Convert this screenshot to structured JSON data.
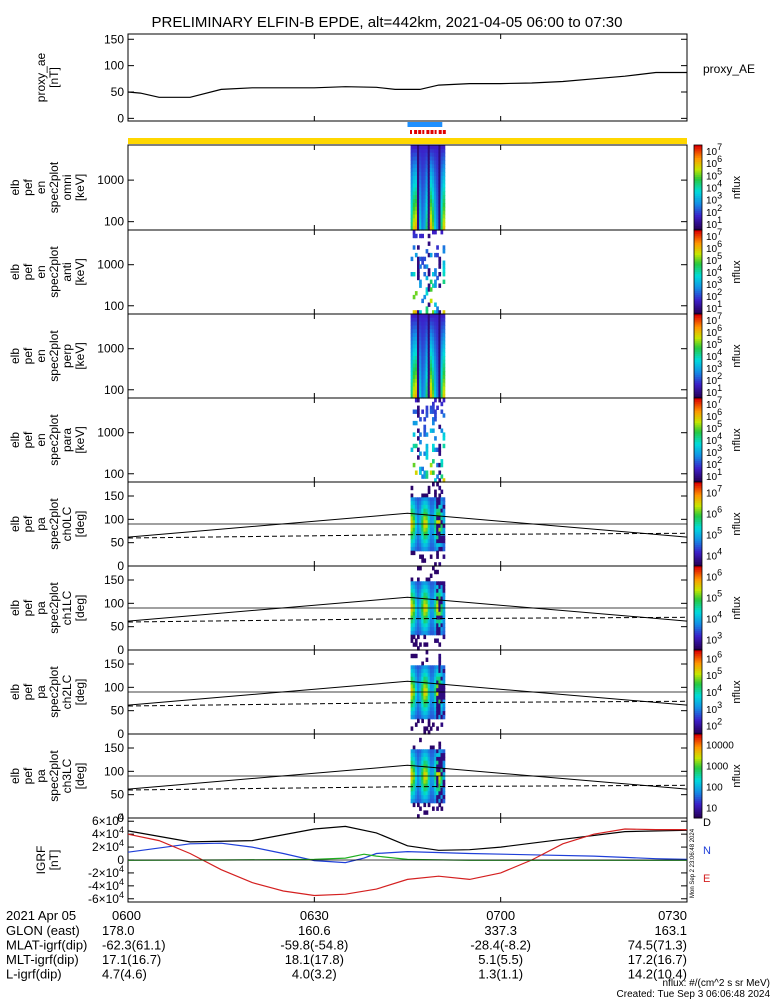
{
  "title": "PRELIMINARY ELFIN-B EPDE, alt=442km, 2021-04-05 06:00 to 07:30",
  "time_axis": {
    "ticks": [
      "0600",
      "0630",
      "0700",
      "0730"
    ],
    "tick_minutes": [
      0,
      30,
      60,
      90
    ],
    "range_minutes": [
      0,
      90
    ],
    "row_label_date": "2021 Apr 05",
    "rows": [
      {
        "label": "GLON (east)",
        "values": [
          "178.0",
          "160.6",
          "337.3",
          "163.1"
        ]
      },
      {
        "label": "MLAT-igrf(dip)",
        "values": [
          "-62.3(61.1)",
          "-59.8(-54.8)",
          "-28.4(-8.2)",
          "74.5(71.3)"
        ]
      },
      {
        "label": "MLT-igrf(dip)",
        "values": [
          "17.1(16.7)",
          "18.1(17.8)",
          "5.1(5.5)",
          "17.2(16.7)"
        ]
      },
      {
        "label": "L-igrf(dip)",
        "values": [
          "4.7(4.6)",
          "4.0(3.2)",
          "1.3(1.1)",
          "14.2(10.4)"
        ]
      }
    ]
  },
  "footer": {
    "units": "nflux: #/(cm^2 s sr MeV)",
    "created": "Created: Tue Sep  3 06:06:48 2024",
    "stamp": "Mon Sep  2 23:06:48 2024"
  },
  "chart_data": [
    {
      "type": "line",
      "panel": "proxy_ae",
      "ylabel": [
        "proxy_ae",
        "[nT]"
      ],
      "legend": "proxy_AE",
      "yticks": [
        "0",
        "50",
        "100",
        "150"
      ],
      "ylim": [
        -5,
        160
      ],
      "x": [
        0,
        2,
        5,
        10,
        15,
        20,
        25,
        30,
        35,
        40,
        43,
        47,
        50,
        55,
        60,
        65,
        70,
        75,
        80,
        85,
        90
      ],
      "y": [
        50,
        48,
        40,
        40,
        55,
        58,
        58,
        58,
        60,
        59,
        55,
        55,
        63,
        66,
        66,
        67,
        70,
        75,
        80,
        87,
        87
      ]
    },
    {
      "type": "heatmap",
      "panel": "en_spec2plot_omni",
      "ylabel": [
        "elb",
        "pef",
        "en",
        "spec2plot",
        "omni",
        "[keV]"
      ],
      "yticks": [
        "100",
        "1000"
      ],
      "yscale": "log",
      "ylim": [
        63,
        7000
      ],
      "colorbar": {
        "label": "nflux",
        "ticks": [
          "10^1",
          "10^2",
          "10^3",
          "10^4",
          "10^5",
          "10^6",
          "10^7"
        ]
      },
      "data_window_minutes": [
        45.5,
        51.0
      ]
    },
    {
      "type": "heatmap",
      "panel": "en_spec2plot_anti",
      "ylabel": [
        "elb",
        "pef",
        "en",
        "spec2plot",
        "anti",
        "[keV]"
      ],
      "yticks": [
        "100",
        "1000"
      ],
      "yscale": "log",
      "ylim": [
        63,
        7000
      ],
      "colorbar": {
        "label": "nflux",
        "ticks": [
          "10^1",
          "10^2",
          "10^3",
          "10^4",
          "10^5",
          "10^6",
          "10^7"
        ]
      },
      "data_window_minutes": [
        45.5,
        51.0
      ]
    },
    {
      "type": "heatmap",
      "panel": "en_spec2plot_perp",
      "ylabel": [
        "elb",
        "pef",
        "en",
        "spec2plot",
        "perp",
        "[keV]"
      ],
      "yticks": [
        "100",
        "1000"
      ],
      "yscale": "log",
      "ylim": [
        63,
        7000
      ],
      "colorbar": {
        "label": "nflux",
        "ticks": [
          "10^1",
          "10^2",
          "10^3",
          "10^4",
          "10^5",
          "10^6",
          "10^7"
        ]
      },
      "data_window_minutes": [
        45.5,
        51.0
      ]
    },
    {
      "type": "heatmap",
      "panel": "en_spec2plot_para",
      "ylabel": [
        "elb",
        "pef",
        "en",
        "spec2plot",
        "para",
        "[keV]"
      ],
      "yticks": [
        "100",
        "1000"
      ],
      "yscale": "log",
      "ylim": [
        63,
        7000
      ],
      "colorbar": {
        "label": "nflux",
        "ticks": [
          "10^1",
          "10^2",
          "10^3",
          "10^4",
          "10^5",
          "10^6",
          "10^7"
        ]
      },
      "data_window_minutes": [
        45.5,
        51.0
      ]
    },
    {
      "type": "heatmap",
      "panel": "pa_spec2plot_ch0LC",
      "ylabel": [
        "elb",
        "pef",
        "pa",
        "spec2plot",
        "ch0LC",
        "[deg]"
      ],
      "yticks": [
        "0",
        "50",
        "100",
        "150"
      ],
      "ylim": [
        0,
        180
      ],
      "colorbar": {
        "label": "nflux",
        "ticks": [
          "10^4",
          "10^5",
          "10^6",
          "10^7"
        ]
      },
      "loss_cone_deg": {
        "x": [
          0,
          45,
          90
        ],
        "y": [
          62,
          113,
          62
        ]
      },
      "antiloss_cone_deg": {
        "x": [
          0,
          45,
          90
        ],
        "y": [
          60,
          67,
          70
        ]
      },
      "reference_deg": 90
    },
    {
      "type": "heatmap",
      "panel": "pa_spec2plot_ch1LC",
      "ylabel": [
        "elb",
        "pef",
        "pa",
        "spec2plot",
        "ch1LC",
        "[deg]"
      ],
      "yticks": [
        "0",
        "50",
        "100",
        "150"
      ],
      "ylim": [
        0,
        180
      ],
      "colorbar": {
        "label": "nflux",
        "ticks": [
          "10^3",
          "10^4",
          "10^5",
          "10^6"
        ]
      },
      "loss_cone_deg": {
        "x": [
          0,
          45,
          90
        ],
        "y": [
          62,
          113,
          62
        ]
      },
      "antiloss_cone_deg": {
        "x": [
          0,
          45,
          90
        ],
        "y": [
          60,
          67,
          70
        ]
      },
      "reference_deg": 90
    },
    {
      "type": "heatmap",
      "panel": "pa_spec2plot_ch2LC",
      "ylabel": [
        "elb",
        "pef",
        "pa",
        "spec2plot",
        "ch2LC",
        "[deg]"
      ],
      "yticks": [
        "0",
        "50",
        "100",
        "150"
      ],
      "ylim": [
        0,
        180
      ],
      "colorbar": {
        "label": "nflux",
        "ticks": [
          "10^2",
          "10^3",
          "10^4",
          "10^5",
          "10^6"
        ]
      },
      "loss_cone_deg": {
        "x": [
          0,
          45,
          90
        ],
        "y": [
          62,
          113,
          62
        ]
      },
      "antiloss_cone_deg": {
        "x": [
          0,
          45,
          90
        ],
        "y": [
          60,
          67,
          70
        ]
      },
      "reference_deg": 90
    },
    {
      "type": "heatmap",
      "panel": "pa_spec2plot_ch3LC",
      "ylabel": [
        "elb",
        "pef",
        "pa",
        "spec2plot",
        "ch3LC",
        "[deg]"
      ],
      "yticks": [
        "0",
        "50",
        "100",
        "150"
      ],
      "ylim": [
        0,
        180
      ],
      "colorbar": {
        "label": "nflux",
        "ticks": [
          "10",
          "100",
          "1000",
          "10000"
        ]
      },
      "loss_cone_deg": {
        "x": [
          0,
          45,
          90
        ],
        "y": [
          62,
          113,
          62
        ]
      },
      "antiloss_cone_deg": {
        "x": [
          0,
          45,
          90
        ],
        "y": [
          60,
          67,
          70
        ]
      },
      "reference_deg": 90
    },
    {
      "type": "line",
      "panel": "bt89_gei",
      "ylabel": [
        "IGRF",
        "[nT]"
      ],
      "yticks": [
        "-6×10^4",
        "-4×10^4",
        "-2×10^4",
        "0",
        "2×10^4",
        "4×10^4",
        "6×10^4"
      ],
      "ylim": [
        -65000,
        65000
      ],
      "series": [
        {
          "name": "D",
          "color": "#000000",
          "x": [
            0,
            10,
            20,
            30,
            35,
            40,
            45,
            50,
            55,
            60,
            70,
            80,
            90
          ],
          "y": [
            45000,
            28000,
            30000,
            48000,
            52000,
            42000,
            22000,
            15000,
            16000,
            20000,
            32000,
            44000,
            46000
          ]
        },
        {
          "name": "N",
          "color": "#1f3fd8",
          "x": [
            0,
            10,
            15,
            20,
            25,
            30,
            35,
            38,
            40,
            45,
            55,
            65,
            75,
            85,
            90
          ],
          "y": [
            12000,
            25000,
            26000,
            20000,
            10000,
            -1000,
            -4000,
            3000,
            10000,
            13000,
            10000,
            8000,
            6000,
            2000,
            1000
          ]
        },
        {
          "name": "E",
          "color": "#d42020",
          "x": [
            0,
            5,
            10,
            15,
            20,
            25,
            30,
            35,
            40,
            45,
            50,
            55,
            60,
            65,
            70,
            75,
            80,
            85,
            90
          ],
          "y": [
            40000,
            30000,
            10000,
            -15000,
            -35000,
            -48000,
            -55000,
            -53000,
            -45000,
            -30000,
            -25000,
            -30000,
            -20000,
            0,
            25000,
            40000,
            48000,
            47000,
            47000
          ]
        },
        {
          "name": "",
          "color": "#20b020",
          "x": [
            0,
            15,
            30,
            35,
            38,
            40,
            45,
            55,
            65,
            75,
            85,
            90
          ],
          "y": [
            -500,
            0,
            1000,
            3000,
            9000,
            6000,
            1000,
            -500,
            -500,
            -500,
            -500,
            -500
          ]
        }
      ]
    }
  ]
}
